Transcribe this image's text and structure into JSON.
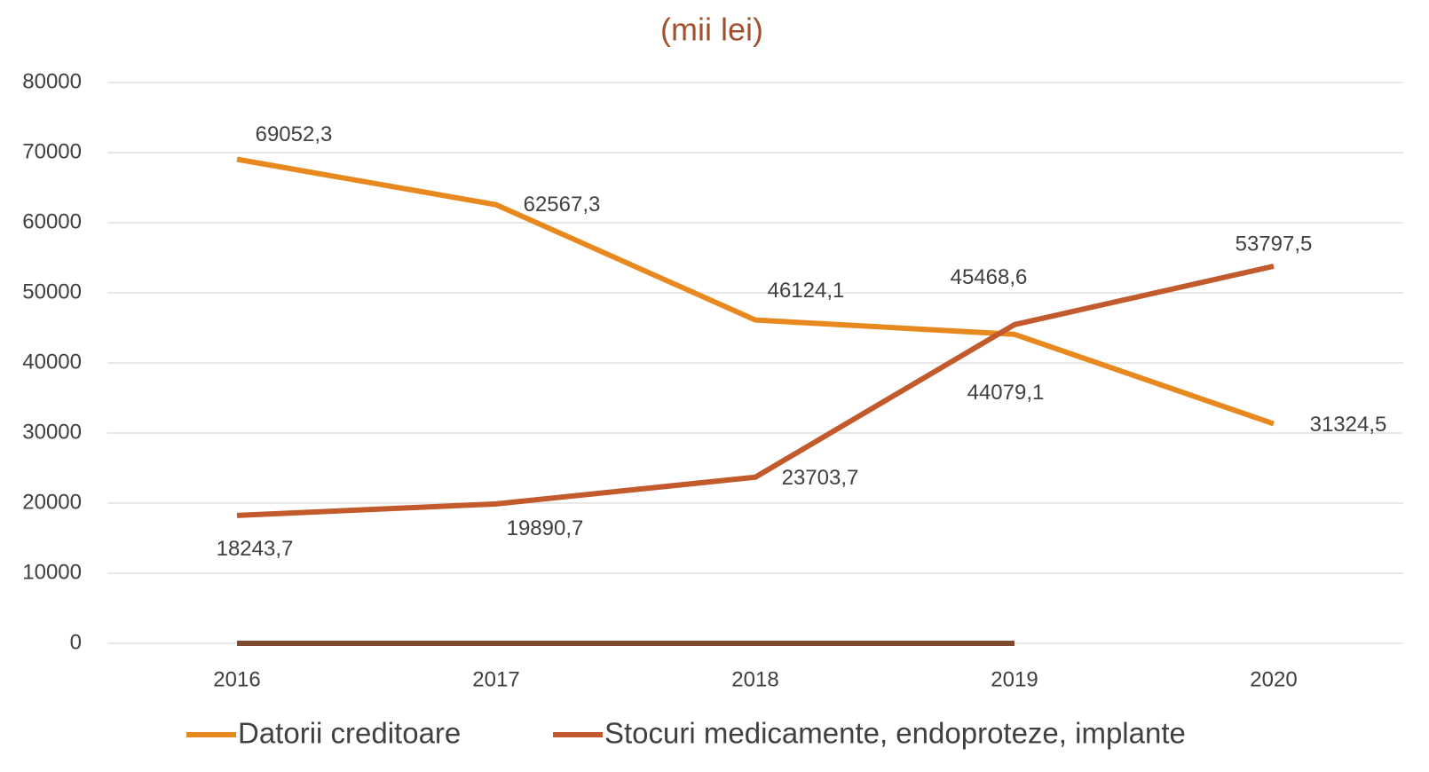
{
  "chart_data": {
    "type": "line",
    "title": "(mii lei)",
    "categories": [
      "2016",
      "2017",
      "2018",
      "2019",
      "2020"
    ],
    "series": [
      {
        "name": "Datorii creditoare",
        "color": "#e8891f",
        "values": [
          69052.3,
          62567.3,
          46124.1,
          44079.1,
          31324.5
        ],
        "value_labels": [
          "69052,3",
          "62567,3",
          "46124,1",
          "44079,1",
          "31324,5"
        ]
      },
      {
        "name": "Stocuri medicamente, endoproteze, implante",
        "color": "#c25a2c",
        "values": [
          18243.7,
          19890.7,
          23703.7,
          45468.6,
          53797.5
        ],
        "value_labels": [
          "18243,7",
          "19890,7",
          "23703,7",
          "45468,6",
          "53797,5"
        ]
      },
      {
        "color": "#7d4a30",
        "values": [
          0,
          0,
          0,
          0,
          null
        ]
      }
    ],
    "ylim": [
      0,
      80000
    ],
    "yticks": [
      0,
      10000,
      20000,
      30000,
      40000,
      50000,
      60000,
      70000,
      80000
    ],
    "grid": true,
    "legend": "bottom"
  }
}
